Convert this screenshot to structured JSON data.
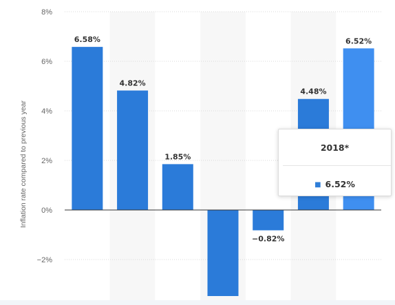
{
  "chart_data": {
    "type": "bar",
    "categories": [
      "",
      "",
      "",
      "",
      "",
      "",
      ""
    ],
    "values": [
      6.58,
      4.82,
      1.85,
      -3.5,
      -0.82,
      4.48,
      6.52
    ],
    "data_labels": [
      "6.58%",
      "4.82%",
      "1.85%",
      "",
      "−0.82%",
      "4.48%",
      "6.52%"
    ],
    "ylabel": "Inflation rate compared to previous year",
    "y_ticks": [
      8,
      6,
      4,
      2,
      0,
      -2
    ],
    "y_tick_labels": [
      "8%",
      "6%",
      "4%",
      "2%",
      "0%",
      "−2%"
    ],
    "ylim": [
      -3.5,
      8
    ],
    "grid": true,
    "legend": "none",
    "colors": {
      "bar": "#2b7bd9",
      "bar_hover": "#3f8ff0",
      "band": "#f7f7f7",
      "grid": "#d8d8d8"
    }
  },
  "tooltip": {
    "title": "2018*",
    "value": "6.52%"
  }
}
